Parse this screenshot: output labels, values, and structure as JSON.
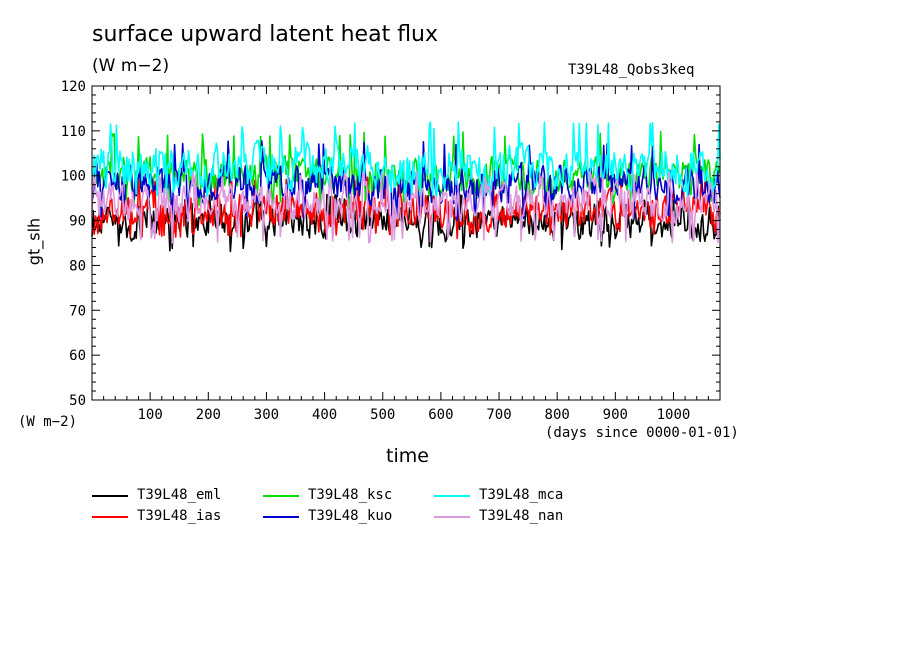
{
  "chart_data": {
    "type": "line",
    "title": "surface upward latent heat flux",
    "units": "(W m−2)",
    "run_label": "T39L48_Qobs3keq",
    "ylabel": "gt_slh",
    "y_units_label": "(W m−2)",
    "xlabel": "time",
    "x_units_label": "(days since 0000-01-01)",
    "xlim": [
      0,
      1080
    ],
    "ylim": [
      50,
      120
    ],
    "x_ticks": [
      100,
      200,
      300,
      400,
      500,
      600,
      700,
      800,
      900,
      1000
    ],
    "y_ticks": [
      50,
      60,
      70,
      80,
      90,
      100,
      110,
      120
    ],
    "grid": false,
    "legend_placement": "bottom",
    "series": [
      {
        "name": "T39L48_eml",
        "color": "#000000",
        "mean": 90,
        "amp": 3.5,
        "min": 83,
        "max": 96
      },
      {
        "name": "T39L48_ias",
        "color": "#ff0000",
        "mean": 92,
        "amp": 3.5,
        "min": 86,
        "max": 100
      },
      {
        "name": "T39L48_ksc",
        "color": "#00dd00",
        "mean": 100,
        "amp": 3.5,
        "min": 93,
        "max": 110
      },
      {
        "name": "T39L48_kuo",
        "color": "#0000cc",
        "mean": 98,
        "amp": 3.5,
        "min": 90,
        "max": 108
      },
      {
        "name": "T39L48_mca",
        "color": "#00ffff",
        "mean": 102,
        "amp": 4,
        "min": 95,
        "max": 112
      },
      {
        "name": "T39L48_nan",
        "color": "#dd99dd",
        "mean": 94,
        "amp": 3.5,
        "min": 85,
        "max": 101
      }
    ]
  }
}
